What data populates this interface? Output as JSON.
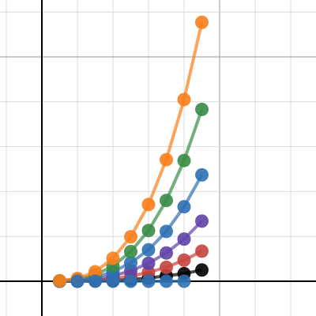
{
  "chart_data": {
    "type": "line",
    "xlim": [
      -1.178,
      7.711
    ],
    "ylim": [
      -0.775,
      6.268
    ],
    "xticks": [
      -1,
      0,
      1,
      2,
      3,
      4,
      5,
      6,
      7
    ],
    "yticks": [
      0,
      1,
      2,
      3,
      4,
      5,
      6
    ],
    "major_every": 5,
    "grid": true,
    "series": [
      {
        "color": "#000000",
        "x": [
          0.5,
          1,
          1.5,
          2,
          2.5,
          3,
          3.5,
          4,
          4.5
        ],
        "values": [
          0,
          0,
          0.01,
          0.02,
          0.04,
          0.07,
          0.12,
          0.17,
          0.25
        ]
      },
      {
        "color": "#c74440",
        "x": [
          0.5,
          1,
          1.5,
          2,
          2.5,
          3,
          3.5,
          4,
          4.5
        ],
        "values": [
          0,
          0.01,
          0.02,
          0.06,
          0.11,
          0.2,
          0.31,
          0.47,
          0.67
        ]
      },
      {
        "color": "#6042a6",
        "x": [
          0.5,
          1,
          1.5,
          2,
          2.5,
          3,
          3.5,
          4,
          4.5
        ],
        "values": [
          0,
          0.01,
          0.05,
          0.12,
          0.23,
          0.4,
          0.63,
          0.94,
          1.34
        ]
      },
      {
        "color": "#2d70b3",
        "x": [
          0.5,
          1,
          1.5,
          2,
          2.5,
          3,
          3.5,
          4,
          4.5
        ],
        "values": [
          0,
          0.03,
          0.09,
          0.21,
          0.41,
          0.7,
          1.11,
          1.66,
          2.37
        ]
      },
      {
        "color": "#388c46",
        "x": [
          0.5,
          1,
          1.5,
          2,
          2.5,
          3,
          3.5,
          4,
          4.5
        ],
        "values": [
          0.01,
          0.04,
          0.14,
          0.34,
          0.66,
          1.13,
          1.8,
          2.69,
          3.83
        ]
      },
      {
        "color": "#fa7e19",
        "x": [
          0.5,
          1,
          1.5,
          2,
          2.5,
          3,
          3.5,
          4,
          4.5
        ],
        "values": [
          0.01,
          0.06,
          0.21,
          0.51,
          0.99,
          1.71,
          2.71,
          4.05,
          5.77
        ]
      },
      {
        "color": "#2d70b3",
        "x": [
          1,
          1.5,
          2,
          2.5,
          3,
          3.5,
          4
        ],
        "values": [
          0,
          0,
          0,
          0,
          0,
          0,
          0
        ]
      }
    ]
  }
}
